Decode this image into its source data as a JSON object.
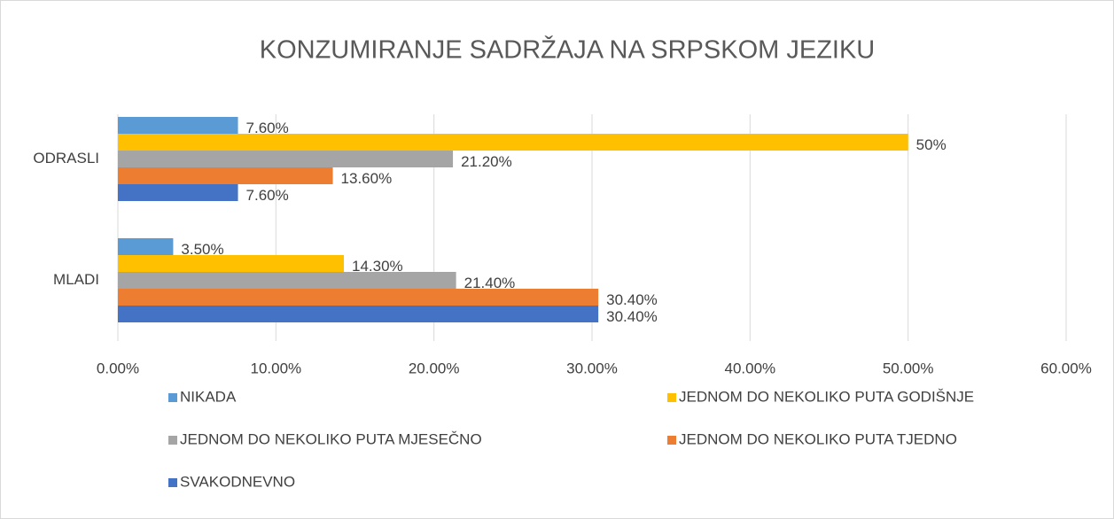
{
  "chart_data": {
    "type": "bar",
    "orientation": "horizontal",
    "title": "KONZUMIRANJE SADRŽAJA NA SRPSKOM JEZIKU",
    "categories": [
      "ODRASLI",
      "MLADI"
    ],
    "series": [
      {
        "name": "NIKADA",
        "color": "#5b9bd5",
        "values": [
          7.6,
          3.5
        ],
        "value_labels": [
          "7.60%",
          "3.50%"
        ]
      },
      {
        "name": "JEDNOM DO NEKOLIKO PUTA GODIŠNJE",
        "color": "#ffc000",
        "values": [
          50,
          14.3
        ],
        "value_labels": [
          "50%",
          "14.30%"
        ]
      },
      {
        "name": "JEDNOM DO NEKOLIKO PUTA MJESEČNO",
        "color": "#a5a5a5",
        "values": [
          21.2,
          21.4
        ],
        "value_labels": [
          "21.20%",
          "21.40%"
        ]
      },
      {
        "name": "JEDNOM DO NEKOLIKO PUTA TJEDNO",
        "color": "#ed7d31",
        "values": [
          13.6,
          30.4
        ],
        "value_labels": [
          "13.60%",
          "30.40%"
        ]
      },
      {
        "name": "SVAKODNEVNO",
        "color": "#4472c4",
        "values": [
          7.6,
          30.4
        ],
        "value_labels": [
          "7.60%",
          "30.40%"
        ]
      }
    ],
    "xlim": [
      0,
      60
    ],
    "xticks": [
      {
        "value": 0,
        "label": "0.00%"
      },
      {
        "value": 10,
        "label": "10.00%"
      },
      {
        "value": 20,
        "label": "20.00%"
      },
      {
        "value": 30,
        "label": "30.00%"
      },
      {
        "value": 40,
        "label": "40.00%"
      },
      {
        "value": 50,
        "label": "50.00%"
      },
      {
        "value": 60,
        "label": "60.00%"
      }
    ],
    "grid": true,
    "legend": "bottom"
  }
}
